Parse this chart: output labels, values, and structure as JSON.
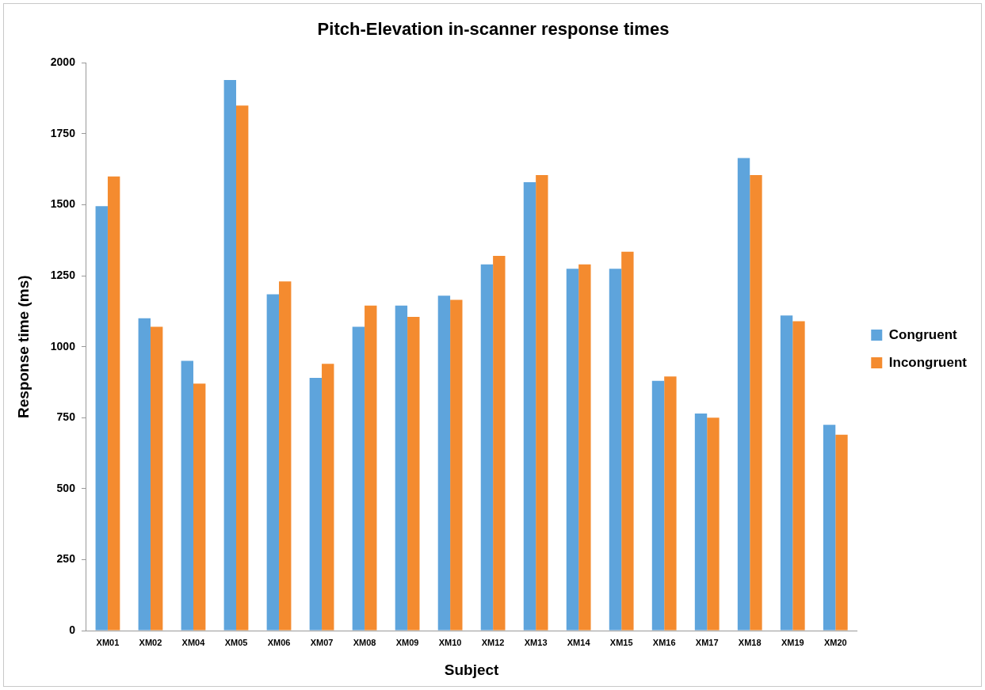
{
  "chart_data": {
    "type": "bar",
    "title": "Pitch-Elevation in-scanner response times",
    "xlabel": "Subject",
    "ylabel": "Response time (ms)",
    "categories": [
      "XM01",
      "XM02",
      "XM04",
      "XM05",
      "XM06",
      "XM07",
      "XM08",
      "XM09",
      "XM10",
      "XM12",
      "XM13",
      "XM14",
      "XM15",
      "XM16",
      "XM17",
      "XM18",
      "XM19",
      "XM20"
    ],
    "series": [
      {
        "name": "Congruent",
        "color": "#5ea4dc",
        "values": [
          1495,
          1100,
          950,
          1940,
          1185,
          890,
          1070,
          1145,
          1180,
          1290,
          1580,
          1275,
          1275,
          880,
          765,
          1665,
          1110,
          725
        ]
      },
      {
        "name": "Incongruent",
        "color": "#f48b2f",
        "values": [
          1600,
          1070,
          870,
          1850,
          1230,
          940,
          1145,
          1105,
          1165,
          1320,
          1605,
          1290,
          1335,
          895,
          750,
          1605,
          1090,
          690
        ]
      }
    ],
    "ylim": [
      0,
      2000
    ],
    "yticks": [
      0,
      250,
      500,
      750,
      1000,
      1250,
      1500,
      1750,
      2000
    ],
    "grid": false,
    "legend": "right"
  }
}
